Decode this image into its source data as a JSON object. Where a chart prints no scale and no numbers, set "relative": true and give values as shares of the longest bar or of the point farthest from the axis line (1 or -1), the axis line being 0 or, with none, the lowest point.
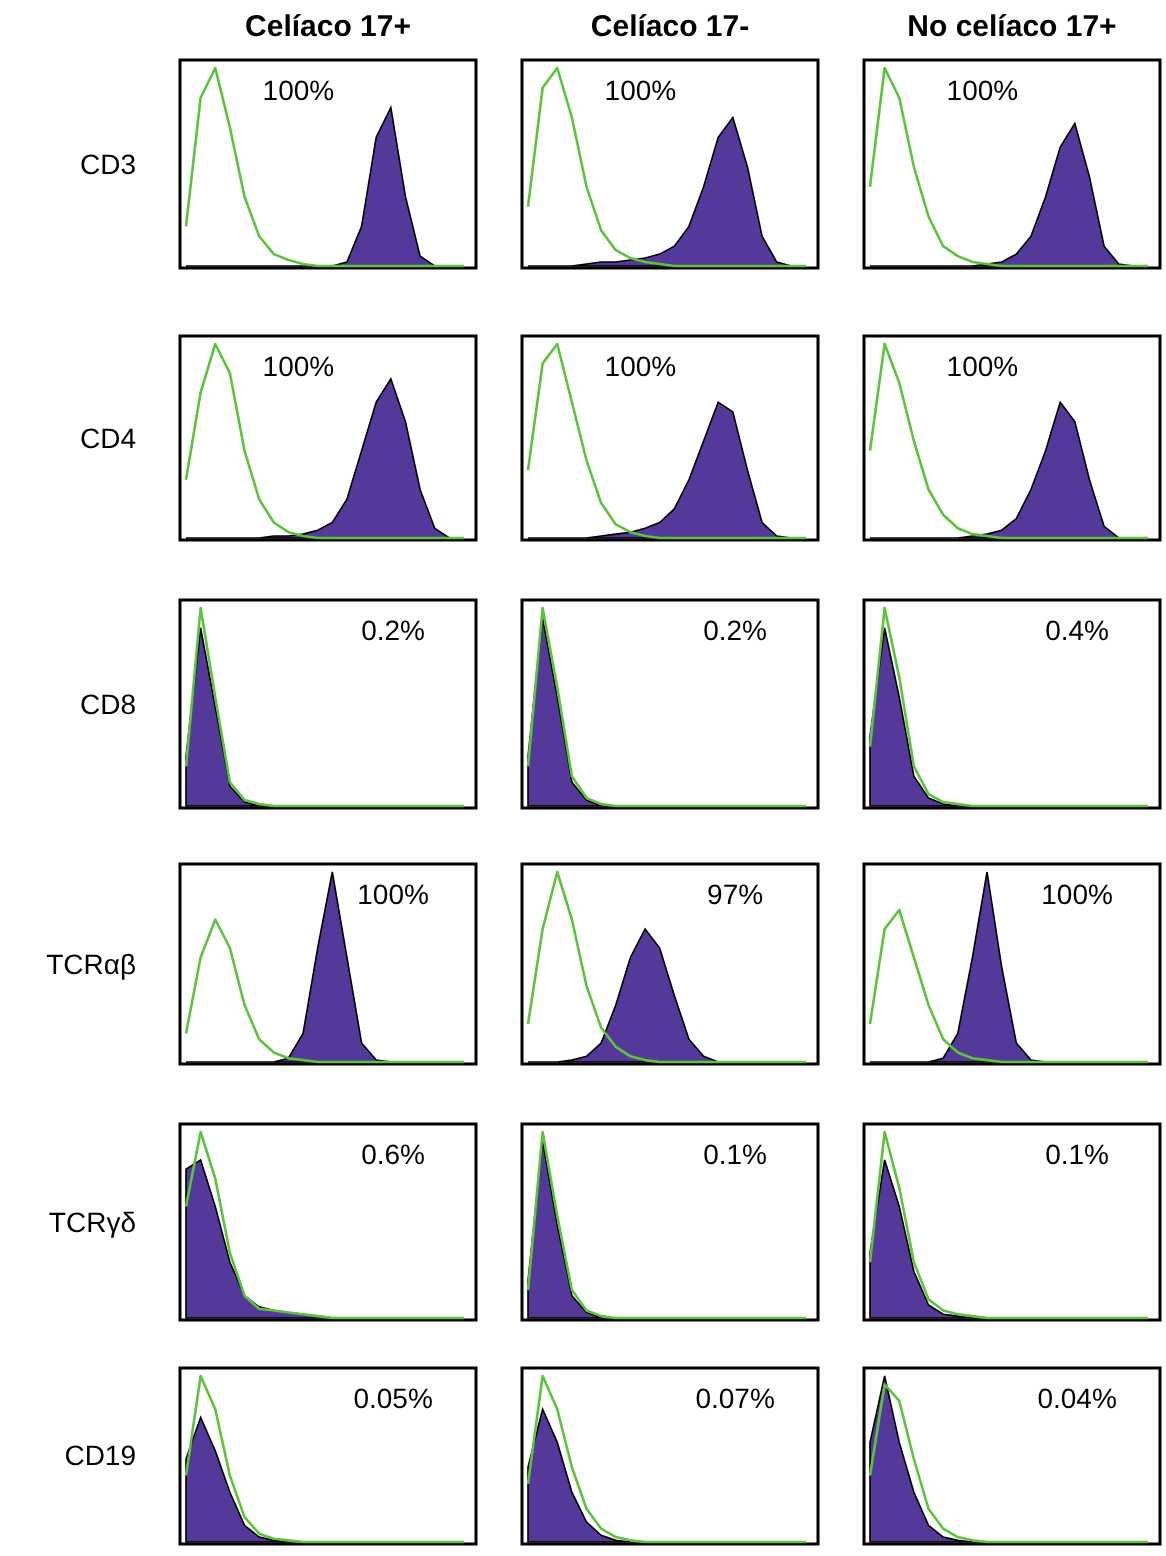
{
  "chart_data": [
    {
      "type": "area",
      "relative": true,
      "title": "Celíaco 17+",
      "ylabel": "CD3",
      "annotations": [
        "100%"
      ],
      "categories": [
        null,
        null,
        null,
        null,
        null,
        null,
        null,
        null,
        null,
        null,
        null,
        null,
        null,
        null,
        null,
        null,
        null,
        null,
        null,
        null
      ],
      "series": [
        {
          "type": "line",
          "color": "#5cc43c",
          "values": [
            0.2,
            0.85,
            1,
            0.7,
            0.35,
            0.15,
            0.06,
            0.03,
            0.01,
            0,
            0,
            0,
            0,
            0,
            0,
            0,
            0,
            0,
            0,
            0
          ]
        },
        {
          "type": "area",
          "color": "#54399a",
          "values": [
            0,
            0,
            0,
            0,
            0,
            0,
            0,
            0,
            0,
            0,
            0,
            0.02,
            0.2,
            0.65,
            0.8,
            0.35,
            0.05,
            0,
            0,
            0
          ]
        }
      ]
    },
    {
      "type": "area",
      "relative": true,
      "title": "Celíaco 17-",
      "annotations": [
        "100%"
      ],
      "categories": [
        null,
        null,
        null,
        null,
        null,
        null,
        null,
        null,
        null,
        null,
        null,
        null,
        null,
        null,
        null,
        null,
        null,
        null,
        null,
        null
      ],
      "series": [
        {
          "type": "line",
          "color": "#5cc43c",
          "values": [
            0.3,
            0.9,
            1,
            0.75,
            0.4,
            0.18,
            0.08,
            0.04,
            0.02,
            0.01,
            0,
            0,
            0,
            0,
            0,
            0,
            0,
            0,
            0,
            0
          ]
        },
        {
          "type": "area",
          "color": "#54399a",
          "values": [
            0,
            0,
            0,
            0,
            0.01,
            0.02,
            0.02,
            0.03,
            0.04,
            0.06,
            0.1,
            0.2,
            0.4,
            0.65,
            0.75,
            0.5,
            0.15,
            0.02,
            0,
            0
          ]
        }
      ]
    },
    {
      "type": "area",
      "relative": true,
      "title": "No celíaco 17+",
      "annotations": [
        "100%"
      ],
      "categories": [
        null,
        null,
        null,
        null,
        null,
        null,
        null,
        null,
        null,
        null,
        null,
        null,
        null,
        null,
        null,
        null,
        null,
        null,
        null,
        null
      ],
      "series": [
        {
          "type": "line",
          "color": "#5cc43c",
          "values": [
            0.4,
            1,
            0.85,
            0.5,
            0.25,
            0.1,
            0.05,
            0.02,
            0.01,
            0,
            0,
            0,
            0,
            0,
            0,
            0,
            0,
            0,
            0,
            0
          ]
        },
        {
          "type": "area",
          "color": "#54399a",
          "values": [
            0,
            0,
            0,
            0,
            0,
            0,
            0,
            0,
            0.01,
            0.02,
            0.06,
            0.15,
            0.35,
            0.6,
            0.72,
            0.45,
            0.1,
            0.01,
            0,
            0
          ]
        }
      ]
    },
    {
      "type": "area",
      "relative": true,
      "ylabel": "CD4",
      "annotations": [
        "100%"
      ],
      "categories": [
        null,
        null,
        null,
        null,
        null,
        null,
        null,
        null,
        null,
        null,
        null,
        null,
        null,
        null,
        null,
        null,
        null,
        null,
        null,
        null
      ],
      "series": [
        {
          "type": "line",
          "color": "#5cc43c",
          "values": [
            0.3,
            0.75,
            1,
            0.85,
            0.45,
            0.2,
            0.08,
            0.03,
            0.01,
            0,
            0,
            0,
            0,
            0,
            0,
            0,
            0,
            0,
            0,
            0
          ]
        },
        {
          "type": "area",
          "color": "#54399a",
          "values": [
            0,
            0,
            0,
            0,
            0,
            0,
            0.01,
            0.01,
            0.02,
            0.04,
            0.08,
            0.2,
            0.45,
            0.7,
            0.82,
            0.6,
            0.25,
            0.05,
            0,
            0
          ]
        }
      ]
    },
    {
      "type": "area",
      "relative": true,
      "annotations": [
        "100%"
      ],
      "categories": [
        null,
        null,
        null,
        null,
        null,
        null,
        null,
        null,
        null,
        null,
        null,
        null,
        null,
        null,
        null,
        null,
        null,
        null,
        null,
        null
      ],
      "series": [
        {
          "type": "line",
          "color": "#5cc43c",
          "values": [
            0.35,
            0.9,
            1,
            0.7,
            0.4,
            0.18,
            0.07,
            0.03,
            0.01,
            0,
            0,
            0,
            0,
            0,
            0,
            0,
            0,
            0,
            0,
            0
          ]
        },
        {
          "type": "area",
          "color": "#54399a",
          "values": [
            0,
            0,
            0,
            0,
            0,
            0.01,
            0.02,
            0.03,
            0.05,
            0.08,
            0.15,
            0.3,
            0.5,
            0.7,
            0.65,
            0.35,
            0.08,
            0.01,
            0,
            0
          ]
        }
      ]
    },
    {
      "type": "area",
      "relative": true,
      "annotations": [
        "100%"
      ],
      "categories": [
        null,
        null,
        null,
        null,
        null,
        null,
        null,
        null,
        null,
        null,
        null,
        null,
        null,
        null,
        null,
        null,
        null,
        null,
        null,
        null
      ],
      "series": [
        {
          "type": "line",
          "color": "#5cc43c",
          "values": [
            0.45,
            1,
            0.8,
            0.5,
            0.25,
            0.12,
            0.05,
            0.02,
            0.01,
            0,
            0,
            0,
            0,
            0,
            0,
            0,
            0,
            0,
            0,
            0
          ]
        },
        {
          "type": "area",
          "color": "#54399a",
          "values": [
            0,
            0,
            0,
            0,
            0,
            0,
            0,
            0.01,
            0.02,
            0.04,
            0.1,
            0.25,
            0.45,
            0.7,
            0.6,
            0.3,
            0.06,
            0,
            0,
            0
          ]
        }
      ]
    },
    {
      "type": "area",
      "relative": true,
      "ylabel": "CD8",
      "annotations": [
        "0.2%"
      ],
      "categories": [
        null,
        null,
        null,
        null,
        null,
        null,
        null,
        null,
        null,
        null,
        null,
        null,
        null,
        null,
        null,
        null,
        null,
        null,
        null,
        null
      ],
      "series": [
        {
          "type": "line",
          "color": "#5cc43c",
          "values": [
            0.2,
            1,
            0.55,
            0.12,
            0.03,
            0.01,
            0,
            0,
            0,
            0,
            0,
            0,
            0,
            0,
            0,
            0,
            0,
            0,
            0,
            0
          ]
        },
        {
          "type": "area",
          "color": "#54399a",
          "values": [
            0.25,
            0.9,
            0.5,
            0.1,
            0.02,
            0,
            0,
            0,
            0,
            0,
            0,
            0,
            0,
            0,
            0,
            0,
            0,
            0,
            0,
            0
          ]
        }
      ]
    },
    {
      "type": "area",
      "relative": true,
      "annotations": [
        "0.2%"
      ],
      "categories": [
        null,
        null,
        null,
        null,
        null,
        null,
        null,
        null,
        null,
        null,
        null,
        null,
        null,
        null,
        null,
        null,
        null,
        null,
        null,
        null
      ],
      "series": [
        {
          "type": "line",
          "color": "#5cc43c",
          "values": [
            0.2,
            1,
            0.6,
            0.15,
            0.04,
            0.01,
            0,
            0,
            0,
            0,
            0,
            0,
            0,
            0,
            0,
            0,
            0,
            0,
            0,
            0
          ]
        },
        {
          "type": "area",
          "color": "#54399a",
          "values": [
            0.25,
            0.95,
            0.55,
            0.12,
            0.03,
            0,
            0,
            0,
            0,
            0,
            0,
            0,
            0,
            0,
            0,
            0,
            0,
            0,
            0,
            0
          ]
        }
      ]
    },
    {
      "type": "area",
      "relative": true,
      "annotations": [
        "0.4%"
      ],
      "categories": [
        null,
        null,
        null,
        null,
        null,
        null,
        null,
        null,
        null,
        null,
        null,
        null,
        null,
        null,
        null,
        null,
        null,
        null,
        null,
        null
      ],
      "series": [
        {
          "type": "line",
          "color": "#5cc43c",
          "values": [
            0.3,
            1,
            0.65,
            0.2,
            0.06,
            0.02,
            0.01,
            0,
            0,
            0,
            0,
            0,
            0,
            0,
            0,
            0,
            0,
            0,
            0,
            0
          ]
        },
        {
          "type": "area",
          "color": "#54399a",
          "values": [
            0.35,
            0.9,
            0.55,
            0.15,
            0.04,
            0.01,
            0,
            0,
            0,
            0,
            0,
            0,
            0,
            0,
            0,
            0,
            0,
            0,
            0,
            0
          ]
        }
      ]
    },
    {
      "type": "area",
      "relative": true,
      "ylabel": "TCRαβ",
      "annotations": [
        "100%"
      ],
      "categories": [
        null,
        null,
        null,
        null,
        null,
        null,
        null,
        null,
        null,
        null,
        null,
        null,
        null,
        null,
        null,
        null,
        null,
        null,
        null,
        null
      ],
      "series": [
        {
          "type": "line",
          "color": "#5cc43c",
          "values": [
            0.15,
            0.55,
            0.75,
            0.6,
            0.3,
            0.12,
            0.05,
            0.02,
            0.01,
            0,
            0,
            0,
            0,
            0,
            0,
            0,
            0,
            0,
            0,
            0
          ]
        },
        {
          "type": "area",
          "color": "#54399a",
          "values": [
            0,
            0,
            0,
            0,
            0,
            0,
            0,
            0.02,
            0.15,
            0.6,
            1,
            0.55,
            0.1,
            0.01,
            0,
            0,
            0,
            0,
            0,
            0
          ]
        }
      ]
    },
    {
      "type": "area",
      "relative": true,
      "annotations": [
        "97%"
      ],
      "categories": [
        null,
        null,
        null,
        null,
        null,
        null,
        null,
        null,
        null,
        null,
        null,
        null,
        null,
        null,
        null,
        null,
        null,
        null,
        null,
        null
      ],
      "series": [
        {
          "type": "line",
          "color": "#5cc43c",
          "values": [
            0.2,
            0.7,
            1,
            0.75,
            0.4,
            0.18,
            0.08,
            0.03,
            0.01,
            0,
            0,
            0,
            0,
            0,
            0,
            0,
            0,
            0,
            0,
            0
          ]
        },
        {
          "type": "area",
          "color": "#54399a",
          "values": [
            0,
            0,
            0,
            0.01,
            0.03,
            0.1,
            0.3,
            0.55,
            0.7,
            0.6,
            0.35,
            0.12,
            0.03,
            0,
            0,
            0,
            0,
            0,
            0,
            0
          ]
        }
      ]
    },
    {
      "type": "area",
      "relative": true,
      "annotations": [
        "100%"
      ],
      "categories": [
        null,
        null,
        null,
        null,
        null,
        null,
        null,
        null,
        null,
        null,
        null,
        null,
        null,
        null,
        null,
        null,
        null,
        null,
        null,
        null
      ],
      "series": [
        {
          "type": "line",
          "color": "#5cc43c",
          "values": [
            0.2,
            0.7,
            0.8,
            0.55,
            0.3,
            0.12,
            0.05,
            0.02,
            0.01,
            0,
            0,
            0,
            0,
            0,
            0,
            0,
            0,
            0,
            0,
            0
          ]
        },
        {
          "type": "area",
          "color": "#54399a",
          "values": [
            0,
            0,
            0,
            0,
            0,
            0.02,
            0.15,
            0.55,
            1,
            0.5,
            0.1,
            0.01,
            0,
            0,
            0,
            0,
            0,
            0,
            0,
            0
          ]
        }
      ]
    },
    {
      "type": "area",
      "relative": true,
      "ylabel": "TCRγδ",
      "annotations": [
        "0.6%"
      ],
      "categories": [
        null,
        null,
        null,
        null,
        null,
        null,
        null,
        null,
        null,
        null,
        null,
        null,
        null,
        null,
        null,
        null,
        null,
        null,
        null,
        null
      ],
      "series": [
        {
          "type": "line",
          "color": "#5cc43c",
          "values": [
            0.6,
            1,
            0.75,
            0.35,
            0.12,
            0.05,
            0.04,
            0.03,
            0.02,
            0.01,
            0,
            0,
            0,
            0,
            0,
            0,
            0,
            0,
            0,
            0
          ]
        },
        {
          "type": "area",
          "color": "#54399a",
          "values": [
            0.8,
            0.85,
            0.6,
            0.3,
            0.12,
            0.06,
            0.04,
            0.03,
            0.02,
            0.01,
            0,
            0,
            0,
            0,
            0,
            0,
            0,
            0,
            0,
            0
          ]
        }
      ]
    },
    {
      "type": "area",
      "relative": true,
      "annotations": [
        "0.1%"
      ],
      "categories": [
        null,
        null,
        null,
        null,
        null,
        null,
        null,
        null,
        null,
        null,
        null,
        null,
        null,
        null,
        null,
        null,
        null,
        null,
        null,
        null
      ],
      "series": [
        {
          "type": "line",
          "color": "#5cc43c",
          "values": [
            0.15,
            1,
            0.55,
            0.15,
            0.04,
            0.01,
            0,
            0,
            0,
            0,
            0,
            0,
            0,
            0,
            0,
            0,
            0,
            0,
            0,
            0
          ]
        },
        {
          "type": "area",
          "color": "#54399a",
          "values": [
            0.2,
            0.95,
            0.5,
            0.12,
            0.03,
            0,
            0,
            0,
            0,
            0,
            0,
            0,
            0,
            0,
            0,
            0,
            0,
            0,
            0,
            0
          ]
        }
      ]
    },
    {
      "type": "area",
      "relative": true,
      "annotations": [
        "0.1%"
      ],
      "categories": [
        null,
        null,
        null,
        null,
        null,
        null,
        null,
        null,
        null,
        null,
        null,
        null,
        null,
        null,
        null,
        null,
        null,
        null,
        null,
        null
      ],
      "series": [
        {
          "type": "line",
          "color": "#5cc43c",
          "values": [
            0.3,
            1,
            0.7,
            0.3,
            0.1,
            0.04,
            0.02,
            0.01,
            0,
            0,
            0,
            0,
            0,
            0,
            0,
            0,
            0,
            0,
            0,
            0
          ]
        },
        {
          "type": "area",
          "color": "#54399a",
          "values": [
            0.35,
            0.85,
            0.6,
            0.25,
            0.07,
            0.02,
            0.01,
            0,
            0,
            0,
            0,
            0,
            0,
            0,
            0,
            0,
            0,
            0,
            0,
            0
          ]
        }
      ]
    },
    {
      "type": "area",
      "relative": true,
      "ylabel": "CD19",
      "annotations": [
        "0.05%"
      ],
      "categories": [
        null,
        null,
        null,
        null,
        null,
        null,
        null,
        null,
        null,
        null,
        null,
        null,
        null,
        null,
        null,
        null,
        null,
        null,
        null,
        null
      ],
      "series": [
        {
          "type": "line",
          "color": "#5cc43c",
          "values": [
            0.4,
            1,
            0.8,
            0.4,
            0.15,
            0.05,
            0.02,
            0.01,
            0,
            0,
            0,
            0,
            0,
            0,
            0,
            0,
            0,
            0,
            0,
            0
          ]
        },
        {
          "type": "area",
          "color": "#54399a",
          "values": [
            0.5,
            0.75,
            0.55,
            0.3,
            0.1,
            0.03,
            0.01,
            0,
            0,
            0,
            0,
            0,
            0,
            0,
            0,
            0,
            0,
            0,
            0,
            0
          ]
        }
      ]
    },
    {
      "type": "area",
      "relative": true,
      "annotations": [
        "0.07%"
      ],
      "categories": [
        null,
        null,
        null,
        null,
        null,
        null,
        null,
        null,
        null,
        null,
        null,
        null,
        null,
        null,
        null,
        null,
        null,
        null,
        null,
        null
      ],
      "series": [
        {
          "type": "line",
          "color": "#5cc43c",
          "values": [
            0.35,
            1,
            0.8,
            0.45,
            0.2,
            0.08,
            0.03,
            0.01,
            0,
            0,
            0,
            0,
            0,
            0,
            0,
            0,
            0,
            0,
            0,
            0
          ]
        },
        {
          "type": "area",
          "color": "#54399a",
          "values": [
            0.45,
            0.8,
            0.6,
            0.3,
            0.12,
            0.04,
            0.01,
            0,
            0,
            0,
            0,
            0,
            0,
            0,
            0,
            0,
            0,
            0,
            0,
            0
          ]
        }
      ]
    },
    {
      "type": "area",
      "relative": true,
      "annotations": [
        "0.04%"
      ],
      "categories": [
        null,
        null,
        null,
        null,
        null,
        null,
        null,
        null,
        null,
        null,
        null,
        null,
        null,
        null,
        null,
        null,
        null,
        null,
        null,
        null
      ],
      "series": [
        {
          "type": "line",
          "color": "#5cc43c",
          "values": [
            0.4,
            0.95,
            0.85,
            0.5,
            0.2,
            0.08,
            0.03,
            0.01,
            0,
            0,
            0,
            0,
            0,
            0,
            0,
            0,
            0,
            0,
            0,
            0
          ]
        },
        {
          "type": "area",
          "color": "#54399a",
          "values": [
            0.6,
            1,
            0.6,
            0.3,
            0.1,
            0.03,
            0.01,
            0,
            0,
            0,
            0,
            0,
            0,
            0,
            0,
            0,
            0,
            0,
            0,
            0
          ]
        }
      ]
    }
  ]
}
